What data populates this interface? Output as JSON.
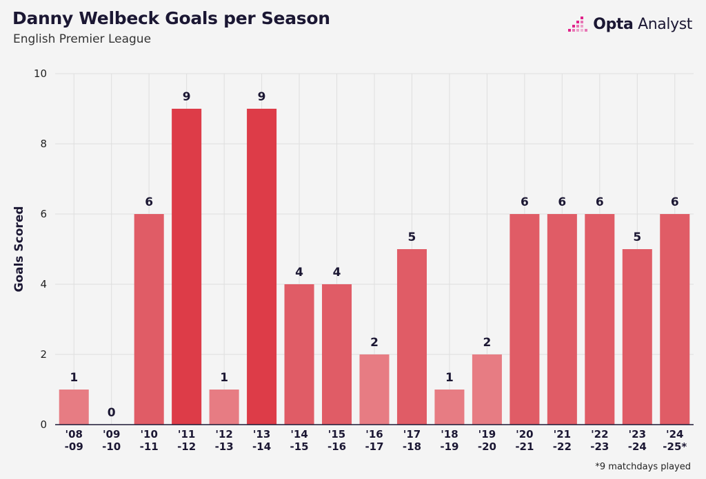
{
  "header": {
    "title": "Danny Welbeck Goals per Season",
    "subtitle": "English Premier League"
  },
  "logo": {
    "brand_bold": "Opta",
    "brand_rest": " Analyst",
    "icon": "opta-bars-icon",
    "accent": "#e0228a"
  },
  "footnote": "*9 matchdays played",
  "colors": {
    "bar_strong": "#dd3c48",
    "bar_mid": "#e05c66",
    "bar_light": "#e77c83",
    "grid": "#dedede"
  },
  "chart_data": {
    "type": "bar",
    "title": "Danny Welbeck Goals per Season",
    "subtitle": "English Premier League",
    "xlabel": "",
    "ylabel": "Goals Scored",
    "ylim": [
      0,
      10
    ],
    "yticks": [
      0,
      2,
      4,
      6,
      8,
      10
    ],
    "grid": true,
    "categories": [
      [
        "'08",
        "-09"
      ],
      [
        "'09",
        "-10"
      ],
      [
        "'10",
        "-11"
      ],
      [
        "'11",
        "-12"
      ],
      [
        "'12",
        "-13"
      ],
      [
        "'13",
        "-14"
      ],
      [
        "'14",
        "-15"
      ],
      [
        "'15",
        "-16"
      ],
      [
        "'16",
        "-17"
      ],
      [
        "'17",
        "-18"
      ],
      [
        "'18",
        "-19"
      ],
      [
        "'19",
        "-20"
      ],
      [
        "'20",
        "-21"
      ],
      [
        "'21",
        "-22"
      ],
      [
        "'22",
        "-23"
      ],
      [
        "'23",
        "-24"
      ],
      [
        "'24",
        "-25*"
      ]
    ],
    "values": [
      1,
      0,
      6,
      9,
      1,
      9,
      4,
      4,
      2,
      5,
      1,
      2,
      6,
      6,
      6,
      5,
      6
    ]
  }
}
